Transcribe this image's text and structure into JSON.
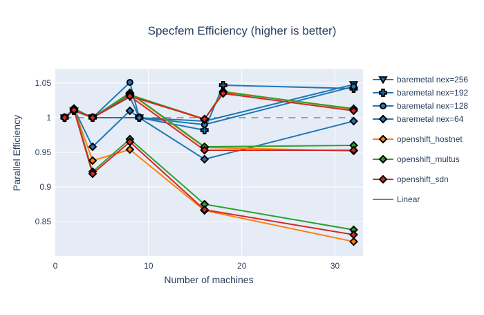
{
  "chart_data": {
    "type": "line",
    "title": "Specfem Efficiency (higher is better)",
    "xlabel": "Number of machines",
    "ylabel": "Parallel Efficiency",
    "xlim": [
      0,
      33
    ],
    "ylim": [
      0.8,
      1.07
    ],
    "xticks": [
      0,
      10,
      20,
      30
    ],
    "yticks": [
      0.85,
      0.9,
      0.95,
      1,
      1.05
    ],
    "ytick_labels": [
      "0.85",
      "0.9",
      "0.95",
      "1",
      "1.05"
    ],
    "xtick_labels": [
      "0",
      "10",
      "20",
      "30"
    ],
    "grid": true,
    "legend_position": "right",
    "colors": {
      "blue": "#1f77b4",
      "orange": "#ff7f0e",
      "green": "#2ca02c",
      "red": "#d62728",
      "black": "#000000",
      "plot_bg": "#e5ecf6"
    },
    "series": [
      {
        "name": "baremetal nex=256",
        "symbol": "triangle-down",
        "lines": [
          {
            "color": "#1f77b4",
            "points": [
              [
                1,
                1.0
              ],
              [
                2,
                1.01
              ],
              [
                4,
                1.0
              ],
              [
                8,
                1.03
              ],
              [
                9,
                1.0
              ],
              [
                16,
                0.995
              ],
              [
                32,
                1.048
              ]
            ]
          }
        ]
      },
      {
        "name": "baremetal nex=192",
        "symbol": "cross",
        "lines": [
          {
            "color": "#1f77b4",
            "points": [
              [
                1,
                1.0
              ],
              [
                2,
                1.01
              ],
              [
                4,
                1.0
              ],
              [
                9,
                1.0
              ],
              [
                16,
                0.982
              ],
              [
                18,
                1.047
              ],
              [
                32,
                1.042
              ]
            ]
          }
        ]
      },
      {
        "name": "baremetal nex=128",
        "symbol": "circle",
        "lines": [
          {
            "color": "#1f77b4",
            "points": [
              [
                1,
                1.0
              ],
              [
                2,
                1.013
              ],
              [
                4,
                1.0
              ],
              [
                8,
                1.051
              ],
              [
                9,
                1.0
              ],
              [
                16,
                0.99
              ],
              [
                32,
                1.045
              ]
            ]
          }
        ]
      },
      {
        "name": "baremetal nex=64",
        "symbol": "diamond",
        "lines": [
          {
            "color": "#1f77b4",
            "points": [
              [
                1,
                1.0
              ],
              [
                2,
                1.013
              ],
              [
                4,
                0.958
              ],
              [
                8,
                1.01
              ],
              [
                9,
                1.0
              ],
              [
                16,
                0.94
              ],
              [
                32,
                0.995
              ]
            ]
          }
        ]
      },
      {
        "name": "openshift_hostnet",
        "symbol": "diamond",
        "lines": [
          {
            "color": "#ff7f0e",
            "points": [
              [
                1,
                1.0
              ],
              [
                2,
                1.013
              ],
              [
                4,
                0.938
              ],
              [
                8,
                0.954
              ],
              [
                16,
                0.866
              ],
              [
                32,
                0.821
              ]
            ]
          },
          {
            "color": "#ff7f0e",
            "points": [
              [
                1,
                1.0
              ],
              [
                2,
                1.013
              ],
              [
                4,
                1.0
              ],
              [
                8,
                1.035
              ],
              [
                16,
                0.957
              ],
              [
                32,
                0.952
              ]
            ]
          },
          {
            "color": "#ff7f0e",
            "points": [
              [
                1,
                1.0
              ],
              [
                2,
                1.013
              ],
              [
                4,
                1.0
              ],
              [
                8,
                1.033
              ],
              [
                16,
                0.997
              ],
              [
                18,
                1.038
              ],
              [
                32,
                1.012
              ]
            ]
          }
        ]
      },
      {
        "name": "openshift_multus",
        "symbol": "diamond",
        "lines": [
          {
            "color": "#2ca02c",
            "points": [
              [
                1,
                1.0
              ],
              [
                2,
                1.013
              ],
              [
                4,
                0.922
              ],
              [
                8,
                0.969
              ],
              [
                16,
                0.875
              ],
              [
                32,
                0.838
              ]
            ]
          },
          {
            "color": "#2ca02c",
            "points": [
              [
                1,
                1.0
              ],
              [
                2,
                1.013
              ],
              [
                4,
                1.0
              ],
              [
                8,
                1.036
              ],
              [
                16,
                0.958
              ],
              [
                32,
                0.96
              ]
            ]
          },
          {
            "color": "#2ca02c",
            "points": [
              [
                1,
                1.0
              ],
              [
                2,
                1.013
              ],
              [
                4,
                1.0
              ],
              [
                8,
                1.033
              ],
              [
                16,
                0.998
              ],
              [
                18,
                1.037
              ],
              [
                32,
                1.013
              ]
            ]
          }
        ]
      },
      {
        "name": "openshift_sdn",
        "symbol": "diamond",
        "lines": [
          {
            "color": "#d62728",
            "points": [
              [
                1,
                1.0
              ],
              [
                2,
                1.011
              ],
              [
                4,
                0.919
              ],
              [
                8,
                0.965
              ],
              [
                16,
                0.867
              ],
              [
                32,
                0.831
              ]
            ]
          },
          {
            "color": "#d62728",
            "points": [
              [
                1,
                1.0
              ],
              [
                2,
                1.011
              ],
              [
                4,
                1.0
              ],
              [
                8,
                1.031
              ],
              [
                16,
                0.953
              ],
              [
                32,
                0.953
              ]
            ]
          },
          {
            "color": "#d62728",
            "points": [
              [
                1,
                1.0
              ],
              [
                2,
                1.011
              ],
              [
                4,
                1.0
              ],
              [
                8,
                1.031
              ],
              [
                16,
                0.998
              ],
              [
                18,
                1.035
              ],
              [
                32,
                1.01
              ]
            ]
          }
        ]
      },
      {
        "name": "Linear",
        "symbol": "none",
        "dashed": true,
        "lines": [
          {
            "color": "#000000",
            "points": [
              [
                1,
                1.0
              ],
              [
                32,
                1.0
              ]
            ]
          }
        ]
      }
    ]
  }
}
